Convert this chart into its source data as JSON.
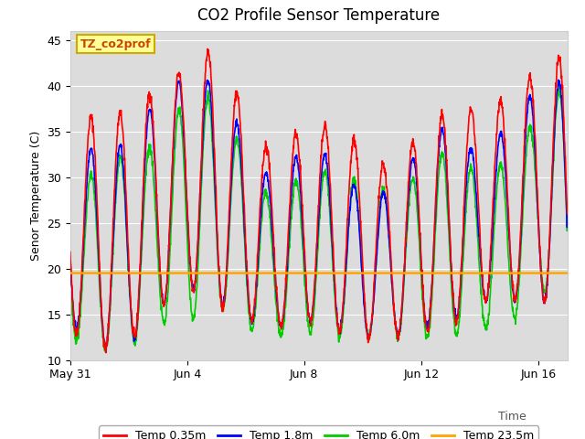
{
  "title": "CO2 Profile Sensor Temperature",
  "ylabel": "Senor Temperature (C)",
  "xlabel": "Time",
  "ylim": [
    10,
    46
  ],
  "yticks": [
    10,
    15,
    20,
    25,
    30,
    35,
    40,
    45
  ],
  "legend_label": "TZ_co2prof",
  "temp_23_5m": 19.5,
  "line_colors": {
    "0.35m": "#FF0000",
    "1.8m": "#0000FF",
    "6.0m": "#00CC00",
    "23.5m": "#FFA500"
  },
  "line_widths": {
    "0.35m": 1.2,
    "1.8m": 1.2,
    "6.0m": 1.2,
    "23.5m": 1.8
  },
  "plot_bg_color": "#DCDCDC",
  "legend_box_color": "#FFFF99",
  "legend_box_edge": "#CCAA00",
  "xtick_labels": [
    "May 31",
    "Jun 4",
    "Jun 8",
    "Jun 12",
    "Jun 16"
  ],
  "xtick_positions": [
    0,
    4,
    8,
    12,
    16
  ],
  "num_days": 17
}
